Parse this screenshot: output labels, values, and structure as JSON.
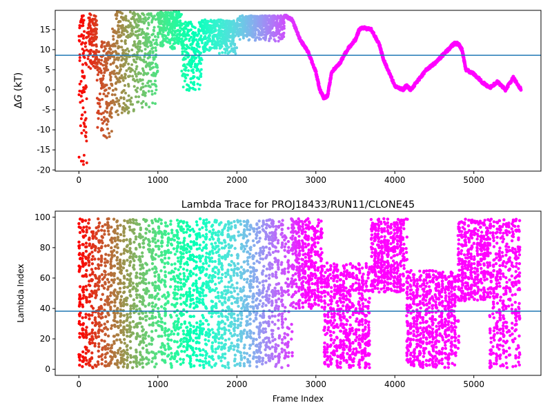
{
  "chart_data": [
    {
      "type": "scatter",
      "title": "",
      "xlabel": "",
      "ylabel_prefix": "Δ",
      "ylabel_var": "G",
      "ylabel_unit": " (kT)",
      "xlim": [
        -300,
        5850
      ],
      "ylim": [
        -20.3,
        19.8
      ],
      "xticks": [
        0,
        1000,
        2000,
        3000,
        4000,
        5000
      ],
      "yticks": [
        -20,
        -15,
        -10,
        -5,
        0,
        5,
        10,
        15
      ],
      "hline": 8.6,
      "hline_color": "#1f77b4",
      "colormap": "rainbow",
      "color_direction": "high-frame-purple",
      "segments": [
        {
          "x0": 0,
          "x1": 100,
          "y_min": -19,
          "y_max": 19.5,
          "mode": "scatter"
        },
        {
          "x0": 100,
          "x1": 230,
          "y_min": 5,
          "y_max": 19,
          "mode": "scatter"
        },
        {
          "x0": 230,
          "x1": 420,
          "y_min": -13.5,
          "y_max": 12,
          "mode": "scatter"
        },
        {
          "x0": 420,
          "x1": 700,
          "y_min": -6.5,
          "y_max": 19.5,
          "mode": "scatter"
        },
        {
          "x0": 700,
          "x1": 1000,
          "y_min": -4.5,
          "y_max": 19,
          "mode": "scatter"
        },
        {
          "x0": 1000,
          "x1": 1300,
          "y_min": 10,
          "y_max": 19.5,
          "mode": "scatter"
        },
        {
          "x0": 1300,
          "x1": 1560,
          "y_min": -0.5,
          "y_max": 17,
          "mode": "scatter"
        },
        {
          "x0": 1560,
          "x1": 2000,
          "y_min": 9,
          "y_max": 17.5,
          "mode": "scatter"
        },
        {
          "x0": 2000,
          "x1": 2600,
          "y_min": 12,
          "y_max": 18.5,
          "mode": "scatter"
        }
      ],
      "line_x": [
        2600,
        2700,
        2800,
        2900,
        3000,
        3050,
        3100,
        3150,
        3200,
        3300,
        3400,
        3500,
        3550,
        3600,
        3700,
        3800,
        3850,
        3900,
        4000,
        4100,
        4150,
        4200,
        4300,
        4400,
        4500,
        4600,
        4700,
        4750,
        4800,
        4850,
        4900,
        5000,
        5100,
        5200,
        5300,
        5400,
        5500,
        5600
      ],
      "line_y": [
        18.5,
        17.5,
        12.5,
        9.5,
        4.5,
        0,
        -2,
        -1.5,
        4.5,
        6.5,
        10,
        12.5,
        15,
        15.5,
        15,
        11.5,
        8,
        5.5,
        1,
        0,
        1,
        0,
        2.5,
        5,
        6.5,
        8.5,
        10.5,
        11.5,
        11.5,
        10,
        5,
        4,
        2,
        0.5,
        2,
        0,
        3,
        0
      ]
    },
    {
      "type": "scatter",
      "title": "Lambda Trace for PROJ18433/RUN11/CLONE45",
      "xlabel": "Frame Index",
      "ylabel": "Lambda Index",
      "xlim": [
        -300,
        5850
      ],
      "ylim": [
        -4,
        104
      ],
      "xticks": [
        0,
        1000,
        2000,
        3000,
        4000,
        5000
      ],
      "yticks": [
        0,
        20,
        40,
        60,
        80,
        100
      ],
      "hline": 38.2,
      "hline_color": "#1f77b4",
      "colormap": "rainbow",
      "color_direction": "high-frame-purple",
      "regions": [
        {
          "x0": 0,
          "x1": 2700,
          "y_min": 1,
          "y_max": 99
        },
        {
          "x0": 2700,
          "x1": 3100,
          "y_min": 40,
          "y_max": 99
        },
        {
          "x0": 3100,
          "x1": 3700,
          "y_min": 1,
          "y_max": 70
        },
        {
          "x0": 3700,
          "x1": 4150,
          "y_min": 50,
          "y_max": 99
        },
        {
          "x0": 4150,
          "x1": 4800,
          "y_min": 1,
          "y_max": 65
        },
        {
          "x0": 4800,
          "x1": 5200,
          "y_min": 45,
          "y_max": 99
        },
        {
          "x0": 5200,
          "x1": 5600,
          "y_min": 1,
          "y_max": 99
        }
      ]
    }
  ]
}
